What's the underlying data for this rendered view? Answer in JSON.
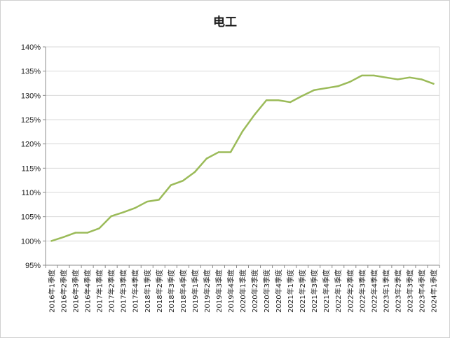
{
  "chart_data": {
    "type": "line",
    "title": "电工",
    "xlabel": "",
    "ylabel": "",
    "ylim": [
      95,
      140
    ],
    "yticks": [
      "95%",
      "100%",
      "105%",
      "110%",
      "115%",
      "120%",
      "125%",
      "130%",
      "135%",
      "140%"
    ],
    "grid": true,
    "legend": "none",
    "categories": [
      "2016年1季度",
      "2016年2季度",
      "2016年3季度",
      "2016年4季度",
      "2017年1季度",
      "2017年2季度",
      "2017年3季度",
      "2017年4季度",
      "2018年1季度",
      "2018年2季度",
      "2018年3季度",
      "2018年4季度",
      "2019年1季度",
      "2019年2季度",
      "2019年3季度",
      "2019年4季度",
      "2020年1季度",
      "2020年2季度",
      "2020年3季度",
      "2020年4季度",
      "2021年1季度",
      "2021年2季度",
      "2021年3季度",
      "2021年4季度",
      "2022年1季度",
      "2022年2季度",
      "2022年3季度",
      "2022年4季度",
      "2023年1季度",
      "2023年2季度",
      "2023年3季度",
      "2023年4季度",
      "2024年1季度"
    ],
    "series": [
      {
        "color": "#9bbb59",
        "values": [
          100.0,
          100.8,
          101.7,
          101.7,
          102.6,
          105.1,
          105.9,
          106.8,
          108.1,
          108.5,
          111.5,
          112.4,
          114.2,
          117.0,
          118.3,
          118.3,
          122.6,
          126.0,
          129.0,
          129.0,
          128.6,
          129.9,
          131.1,
          131.5,
          131.9,
          132.8,
          134.1,
          134.1,
          133.7,
          133.3,
          133.7,
          133.3,
          132.4
        ]
      }
    ]
  }
}
